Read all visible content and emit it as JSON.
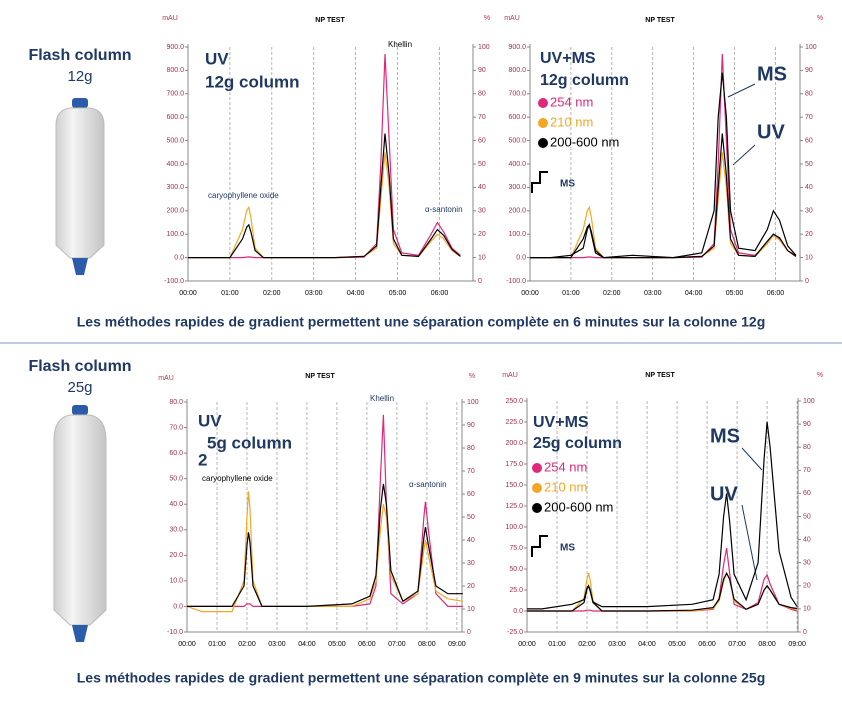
{
  "sections": [
    {
      "title": "Flash column",
      "size": "12g",
      "caption": "Les méthodes rapides de gradient permettent une séparation complète en 6 minutes sur la colonne 12g"
    },
    {
      "title": "Flash column",
      "size": "25g",
      "caption": "Les méthodes rapides de gradient permettent une séparation complète en 9 minutes sur la colonne 25g"
    }
  ],
  "chart_data": [
    {
      "type": "line",
      "title": "NP TEST",
      "y_label": "mAU",
      "y2_label": "%",
      "grid": true,
      "annotations": [
        "UV",
        "12g column",
        "caryophyllene oxide",
        "Khellin",
        "α-santonin"
      ],
      "xlim": [
        0,
        6.8
      ],
      "xticks": [
        {
          "value": 0,
          "label": "00:00"
        },
        {
          "value": 1,
          "label": "01:00"
        },
        {
          "value": 2,
          "label": "02:00"
        },
        {
          "value": 3,
          "label": "03:00"
        },
        {
          "value": 4,
          "label": "04:00"
        },
        {
          "value": 5,
          "label": "05:00"
        },
        {
          "value": 6,
          "label": "06:00"
        }
      ],
      "ylim": [
        -100,
        900
      ],
      "yticks": [
        {
          "value": -100,
          "label": "-100.0"
        },
        {
          "value": 0,
          "label": "0.0"
        },
        {
          "value": 100,
          "label": "100.0"
        },
        {
          "value": 200,
          "label": "200.0"
        },
        {
          "value": 300,
          "label": "300.0"
        },
        {
          "value": 400,
          "label": "400.0"
        },
        {
          "value": 500,
          "label": "500.0"
        },
        {
          "value": 600,
          "label": "600.0"
        },
        {
          "value": 700,
          "label": "700.0"
        },
        {
          "value": 800,
          "label": "800.0"
        },
        {
          "value": 900,
          "label": "900.0"
        }
      ],
      "y2lim": [
        0,
        100
      ],
      "y2ticks": [
        0,
        10,
        20,
        30,
        40,
        50,
        60,
        70,
        80,
        90,
        100
      ],
      "x": [
        0,
        0.5,
        1.0,
        1.3,
        1.4,
        1.45,
        1.5,
        1.6,
        1.8,
        2.5,
        3.5,
        4.2,
        4.5,
        4.6,
        4.7,
        4.8,
        4.9,
        5.1,
        5.5,
        5.8,
        5.95,
        6.1,
        6.3,
        6.5
      ],
      "series": [
        {
          "color": "#e0287a",
          "values": [
            0,
            0,
            0,
            0,
            2,
            3,
            2,
            0,
            0,
            0,
            0,
            2,
            60,
            400,
            870,
            500,
            120,
            20,
            10,
            100,
            150,
            110,
            40,
            10
          ]
        },
        {
          "color": "#f5a623",
          "values": [
            0,
            0,
            0,
            120,
            200,
            215,
            170,
            40,
            0,
            0,
            0,
            5,
            40,
            250,
            450,
            300,
            60,
            10,
            5,
            70,
            100,
            80,
            30,
            5
          ]
        },
        {
          "color": "#000000",
          "values": [
            0,
            0,
            0,
            80,
            130,
            140,
            110,
            30,
            0,
            0,
            0,
            5,
            50,
            300,
            530,
            350,
            80,
            10,
            5,
            80,
            120,
            95,
            35,
            5
          ]
        }
      ]
    },
    {
      "type": "line",
      "title": "NP TEST",
      "y_label": "mAU",
      "y2_label": "%",
      "grid": true,
      "legend": "upper left",
      "annotations": [
        "UV+MS",
        "12g column",
        "MS",
        "UV",
        "MS"
      ],
      "xlim": [
        0,
        6.6
      ],
      "xticks": [
        {
          "value": 0,
          "label": "00:00"
        },
        {
          "value": 1,
          "label": "01:00"
        },
        {
          "value": 2,
          "label": "02:00"
        },
        {
          "value": 3,
          "label": "03:00"
        },
        {
          "value": 4,
          "label": "04:00"
        },
        {
          "value": 5,
          "label": "05:00"
        },
        {
          "value": 6,
          "label": "06:00"
        }
      ],
      "ylim": [
        -100,
        900
      ],
      "yticks": [
        {
          "value": -100,
          "label": "-100.0"
        },
        {
          "value": 0,
          "label": "0.0"
        },
        {
          "value": 100,
          "label": "100.0"
        },
        {
          "value": 200,
          "label": "200.0"
        },
        {
          "value": 300,
          "label": "300.0"
        },
        {
          "value": 400,
          "label": "400.0"
        },
        {
          "value": 500,
          "label": "500.0"
        },
        {
          "value": 600,
          "label": "600.0"
        },
        {
          "value": 700,
          "label": "700.0"
        },
        {
          "value": 800,
          "label": "800.0"
        },
        {
          "value": 900,
          "label": "900.0"
        }
      ],
      "y2lim": [
        0,
        100
      ],
      "y2ticks": [
        0,
        10,
        20,
        30,
        40,
        50,
        60,
        70,
        80,
        90,
        100
      ],
      "x": [
        0,
        0.5,
        1.0,
        1.3,
        1.4,
        1.45,
        1.5,
        1.6,
        1.8,
        2.5,
        3.5,
        4.2,
        4.5,
        4.6,
        4.7,
        4.8,
        4.9,
        5.1,
        5.5,
        5.8,
        5.95,
        6.1,
        6.3,
        6.5
      ],
      "series": [
        {
          "name": "254 nm",
          "color": "#e0287a",
          "values": [
            0,
            0,
            0,
            0,
            2,
            3,
            2,
            0,
            0,
            0,
            0,
            2,
            60,
            400,
            870,
            500,
            120,
            20,
            10,
            60,
            100,
            80,
            30,
            10
          ]
        },
        {
          "name": "210 nm",
          "color": "#f5a623",
          "values": [
            0,
            0,
            0,
            120,
            200,
            215,
            170,
            40,
            0,
            0,
            0,
            5,
            40,
            250,
            450,
            300,
            60,
            10,
            5,
            60,
            95,
            75,
            30,
            5
          ]
        },
        {
          "name": "200-600 nm",
          "color": "#000000",
          "values": [
            0,
            0,
            0,
            80,
            130,
            140,
            110,
            30,
            0,
            0,
            0,
            5,
            50,
            300,
            530,
            350,
            80,
            10,
            5,
            70,
            100,
            85,
            30,
            5
          ]
        },
        {
          "color": "#000000",
          "axis": "y2",
          "values": [
            10,
            10,
            11,
            14,
            22,
            24,
            20,
            12,
            10,
            11,
            10,
            12,
            30,
            70,
            89,
            70,
            30,
            14,
            13,
            22,
            30,
            26,
            15,
            11
          ]
        }
      ]
    },
    {
      "type": "line",
      "title": "NP TEST",
      "y_label": "mAU",
      "y2_label": "%",
      "grid": true,
      "annotations": [
        "UV",
        "5g column",
        "2",
        "caryophyllene oxide",
        "Khellin",
        "α-santonin"
      ],
      "xlim": [
        0,
        9.17
      ],
      "xticks": [
        {
          "value": 0,
          "label": "00:00"
        },
        {
          "value": 1,
          "label": "01:00"
        },
        {
          "value": 2,
          "label": "02:00"
        },
        {
          "value": 3,
          "label": "03:00"
        },
        {
          "value": 4,
          "label": "04:00"
        },
        {
          "value": 5,
          "label": "05:00"
        },
        {
          "value": 6,
          "label": "06:00"
        },
        {
          "value": 7,
          "label": "07:00"
        },
        {
          "value": 8,
          "label": "08:00"
        },
        {
          "value": 9,
          "label": "09:00"
        }
      ],
      "ylim": [
        -10,
        80
      ],
      "yticks": [
        {
          "value": -10,
          "label": "-10.0"
        },
        {
          "value": 0,
          "label": "0.0"
        },
        {
          "value": 10,
          "label": "10.0"
        },
        {
          "value": 20,
          "label": "20.0"
        },
        {
          "value": 30,
          "label": "30.0"
        },
        {
          "value": 40,
          "label": "40.0"
        },
        {
          "value": 50,
          "label": "50.0"
        },
        {
          "value": 60,
          "label": "60.0"
        },
        {
          "value": 70,
          "label": "70.0"
        },
        {
          "value": 80,
          "label": "80.0"
        }
      ],
      "y2lim": [
        0,
        100
      ],
      "y2ticks": [
        0,
        10,
        20,
        30,
        40,
        50,
        60,
        70,
        80,
        90,
        100
      ],
      "x": [
        0,
        0.5,
        1.5,
        1.9,
        2.0,
        2.05,
        2.1,
        2.2,
        2.5,
        4,
        5.5,
        6.1,
        6.3,
        6.45,
        6.55,
        6.65,
        6.8,
        7.2,
        7.7,
        7.9,
        7.95,
        8.05,
        8.3,
        8.7,
        9.2
      ],
      "series": [
        {
          "color": "#e0287a",
          "values": [
            0,
            0,
            0,
            0,
            1,
            1,
            1,
            0,
            0,
            0,
            0,
            1,
            8,
            50,
            75,
            40,
            5,
            1,
            5,
            35,
            41,
            30,
            5,
            0,
            0
          ]
        },
        {
          "color": "#f5a623",
          "values": [
            0,
            -2,
            -2,
            10,
            35,
            45,
            38,
            10,
            0,
            0,
            0,
            3,
            10,
            30,
            40,
            35,
            12,
            2,
            5,
            22,
            26,
            20,
            6,
            3,
            2
          ]
        },
        {
          "color": "#000000",
          "values": [
            0,
            0,
            0,
            8,
            24,
            29,
            25,
            8,
            0,
            0,
            1,
            4,
            12,
            38,
            48,
            40,
            14,
            2,
            6,
            27,
            31,
            24,
            8,
            5,
            5
          ]
        }
      ]
    },
    {
      "type": "line",
      "title": "NP TEST",
      "y_label": "mAU",
      "y2_label": "%",
      "grid": true,
      "legend": "upper left",
      "annotations": [
        "UV+MS",
        "25g column",
        "MS",
        "UV",
        "MS"
      ],
      "xlim": [
        0,
        9.03
      ],
      "xticks": [
        {
          "value": 0,
          "label": "00:00"
        },
        {
          "value": 1,
          "label": "01:00"
        },
        {
          "value": 2,
          "label": "02:00"
        },
        {
          "value": 3,
          "label": "03:00"
        },
        {
          "value": 4,
          "label": "04:00"
        },
        {
          "value": 5,
          "label": "05:00"
        },
        {
          "value": 6,
          "label": "06:00"
        },
        {
          "value": 7,
          "label": "07:00"
        },
        {
          "value": 8,
          "label": "08:00"
        },
        {
          "value": 9,
          "label": "09:00"
        }
      ],
      "ylim": [
        -25,
        250
      ],
      "yticks": [
        {
          "value": -25,
          "label": "-25.0"
        },
        {
          "value": 0,
          "label": "0.0"
        },
        {
          "value": 25,
          "label": "25.0"
        },
        {
          "value": 50,
          "label": "50.0"
        },
        {
          "value": 75,
          "label": "75.0"
        },
        {
          "value": 100,
          "label": "100.0"
        },
        {
          "value": 125,
          "label": "125.0"
        },
        {
          "value": 150,
          "label": "150.0"
        },
        {
          "value": 175,
          "label": "175.0"
        },
        {
          "value": 200,
          "label": "200.0"
        },
        {
          "value": 225,
          "label": "225.0"
        },
        {
          "value": 250,
          "label": "250.0"
        }
      ],
      "y2lim": [
        0,
        100
      ],
      "y2ticks": [
        0,
        10,
        20,
        30,
        40,
        50,
        60,
        70,
        80,
        90,
        100
      ],
      "x": [
        0,
        0.5,
        1.5,
        1.9,
        2.0,
        2.05,
        2.1,
        2.2,
        2.5,
        4,
        5.5,
        6.2,
        6.4,
        6.55,
        6.65,
        6.75,
        6.9,
        7.3,
        7.7,
        7.9,
        8.0,
        8.1,
        8.4,
        8.8,
        9.0
      ],
      "series": [
        {
          "name": "254 nm",
          "color": "#e0287a",
          "values": [
            0,
            0,
            0,
            0,
            1,
            1,
            1,
            0,
            0,
            0,
            0,
            2,
            15,
            55,
            75,
            45,
            8,
            2,
            10,
            38,
            43,
            32,
            8,
            2,
            0
          ]
        },
        {
          "name": "210 nm",
          "color": "#f5a623",
          "values": [
            0,
            0,
            0,
            15,
            38,
            45,
            38,
            12,
            0,
            0,
            0,
            3,
            12,
            35,
            45,
            38,
            12,
            2,
            8,
            25,
            30,
            25,
            8,
            3,
            2
          ]
        },
        {
          "name": "200-600 nm",
          "color": "#000000",
          "values": [
            0,
            0,
            0,
            10,
            26,
            30,
            26,
            10,
            0,
            0,
            1,
            4,
            14,
            38,
            45,
            38,
            14,
            2,
            8,
            25,
            30,
            25,
            8,
            4,
            3
          ]
        },
        {
          "color": "#000000",
          "axis": "y2",
          "values": [
            10,
            10,
            12,
            14,
            19,
            20,
            18,
            13,
            11,
            11,
            12,
            14,
            25,
            50,
            60,
            48,
            25,
            14,
            30,
            75,
            91,
            80,
            35,
            15,
            11
          ]
        }
      ]
    }
  ]
}
